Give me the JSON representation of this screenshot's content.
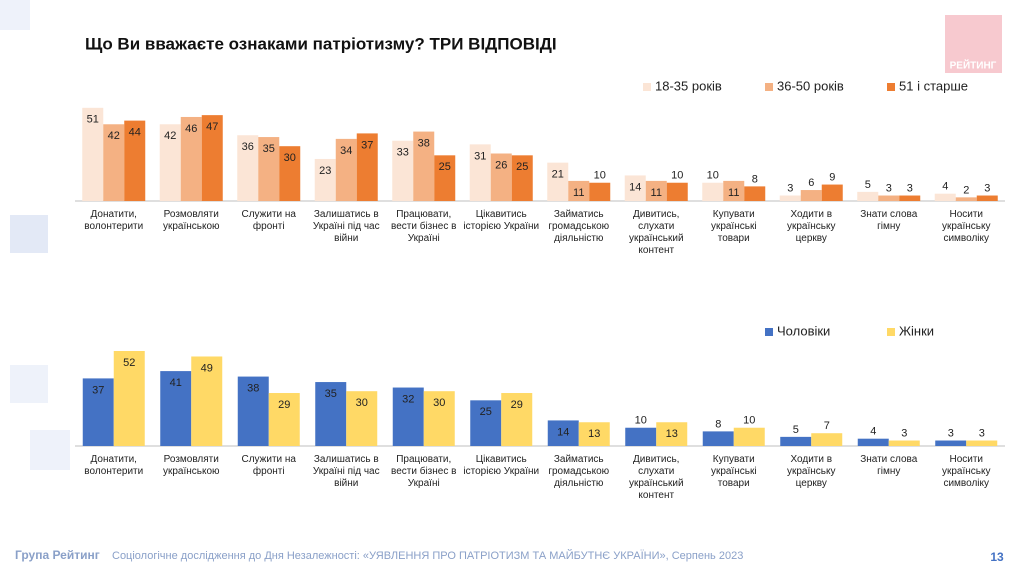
{
  "title": "Що Ви вважаєте ознаками патріотизму? ТРИ ВІДПОВІДІ",
  "logo": "РЕЙТИНГ",
  "footer": {
    "brand": "Група Рейтинг",
    "text": "Соціологічне дослідження до Дня Незалежності: «УЯВЛЕННЯ ПРО ПАТРІОТИЗМ ТА МАЙБУТНЄ УКРАЇНИ», Серпень 2023",
    "page": "13"
  },
  "chart_data": [
    {
      "type": "bar",
      "legend": "top-right",
      "ylim": [
        0,
        52
      ],
      "categories": [
        "Донатити,\nволонтерити",
        "Розмовляти\nукраїнською",
        "Служити на\nфронті",
        "Залишатись в\nУкраїні під час\nвійни",
        "Працювати,\nвести бізнес в\nУкраїні",
        "Цікавитись\nісторією України",
        "Займатись\nгромадською\nдіяльністю",
        "Дивитись,\nслухати\nукраїнський\nконтент",
        "Купувати\nукраїнські товари",
        "Ходити в\nукраїнську\nцеркву",
        "Знати слова\nгімну",
        "Носити\nукраїнську\nсимволіку"
      ],
      "series": [
        {
          "name": "18-35 років",
          "color": "#fbe5d6",
          "values": [
            51,
            42,
            36,
            23,
            33,
            31,
            21,
            14,
            10,
            3,
            5,
            4
          ]
        },
        {
          "name": "36-50 років",
          "color": "#f4b183",
          "values": [
            42,
            46,
            35,
            34,
            38,
            26,
            11,
            11,
            11,
            6,
            3,
            2
          ]
        },
        {
          "name": "51 і старше",
          "color": "#ed7d31",
          "values": [
            44,
            47,
            30,
            37,
            25,
            25,
            10,
            10,
            8,
            9,
            3,
            3
          ]
        }
      ]
    },
    {
      "type": "bar",
      "legend": "top-right",
      "ylim": [
        0,
        52
      ],
      "categories": [
        "Донатити,\nволонтерити",
        "Розмовляти\nукраїнською",
        "Служити на\nфронті",
        "Залишатись в\nУкраїні під час\nвійни",
        "Працювати,\nвести бізнес в\nУкраїні",
        "Цікавитись\nісторією України",
        "Займатись\nгромадською\nдіяльністю",
        "Дивитись,\nслухати\nукраїнський\nконтент",
        "Купувати\nукраїнські товари",
        "Ходити в\nукраїнську\nцеркву",
        "Знати слова\nгімну",
        "Носити\nукраїнську\nсимволіку"
      ],
      "series": [
        {
          "name": "Чоловіки",
          "color": "#4472c4",
          "values": [
            37,
            41,
            38,
            35,
            32,
            25,
            14,
            10,
            8,
            5,
            4,
            3
          ]
        },
        {
          "name": "Жінки",
          "color": "#ffd966",
          "values": [
            52,
            49,
            29,
            30,
            30,
            29,
            13,
            13,
            10,
            7,
            3,
            3
          ]
        }
      ]
    }
  ]
}
